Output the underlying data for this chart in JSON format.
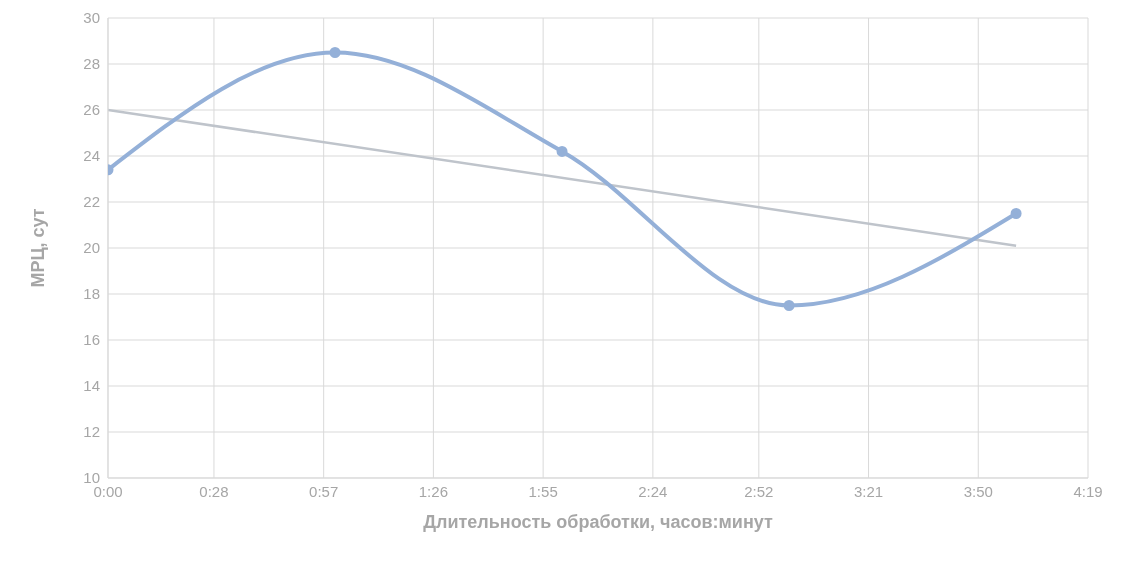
{
  "chart_data": {
    "type": "line",
    "xlabel": "Длительность обработки, часов:минут",
    "ylabel": "МРЦ, сут",
    "x": [
      0,
      1,
      2,
      3,
      4
    ],
    "series": [
      {
        "color": "#94b0d8",
        "values": [
          23.4,
          28.5,
          24.2,
          17.5,
          21.5
        ],
        "marker": "circle"
      },
      {
        "color": "#bfc4cb",
        "x": [
          0,
          4
        ],
        "values": [
          26.0,
          20.1
        ],
        "marker": "none"
      }
    ],
    "xlim": [
      0,
      4.3167
    ],
    "xticks": [
      {
        "value": 0,
        "label": "0:00"
      },
      {
        "value": 0.4667,
        "label": "0:28"
      },
      {
        "value": 0.95,
        "label": "0:57"
      },
      {
        "value": 1.4333,
        "label": "1:26"
      },
      {
        "value": 1.9167,
        "label": "1:55"
      },
      {
        "value": 2.4,
        "label": "2:24"
      },
      {
        "value": 2.8667,
        "label": "2:52"
      },
      {
        "value": 3.35,
        "label": "3:21"
      },
      {
        "value": 3.8333,
        "label": "3:50"
      },
      {
        "value": 4.3167,
        "label": "4:19"
      }
    ],
    "ylim": [
      10,
      30
    ],
    "yticks": [
      10,
      12,
      14,
      16,
      18,
      20,
      22,
      24,
      26,
      28,
      30
    ],
    "grid": true,
    "line_style": "solid"
  }
}
